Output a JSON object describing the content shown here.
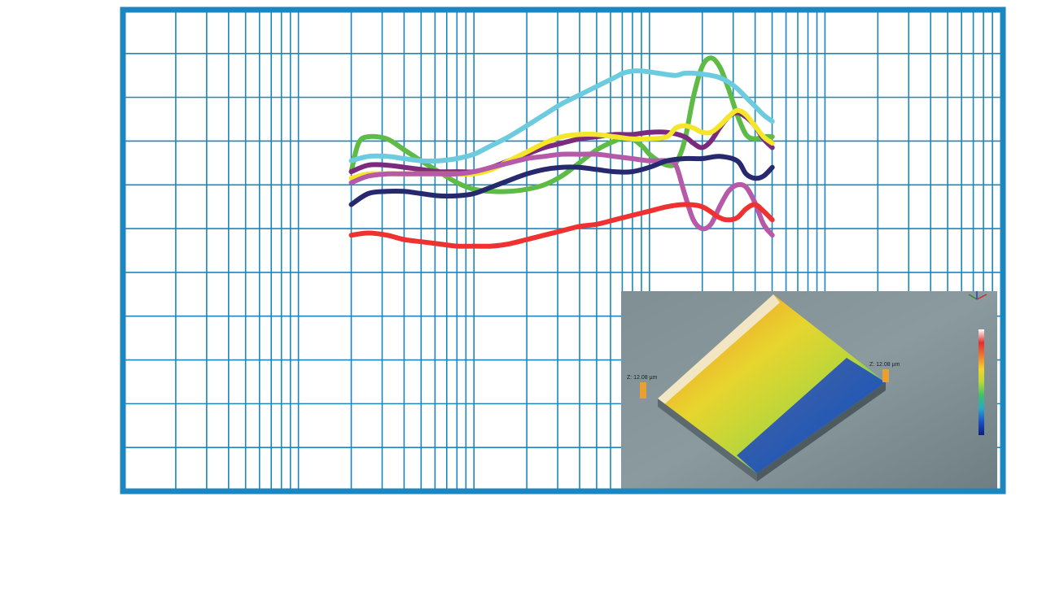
{
  "chart_data": {
    "type": "line",
    "xscale": "log",
    "xlim": [
      1,
      100000
    ],
    "ylim": [
      0,
      11
    ],
    "grid": true,
    "frame_color": "#1b86bf",
    "grid_color": "#1b86bf",
    "series": [
      {
        "color": "#5dbb46",
        "x": [
          20,
          22,
          25,
          32,
          40,
          50,
          63,
          80,
          100,
          126,
          158,
          200,
          251,
          316,
          398,
          501,
          631,
          750,
          900,
          1000,
          1122,
          1259,
          1413,
          1585,
          1778,
          1995,
          2239,
          2512,
          2818,
          3162,
          3548,
          3981,
          4467,
          5012
        ],
        "y": [
          7.3,
          7.95,
          8.1,
          8.05,
          7.8,
          7.55,
          7.3,
          7.05,
          6.9,
          6.85,
          6.85,
          6.9,
          7.0,
          7.2,
          7.5,
          7.8,
          8.0,
          8.1,
          7.9,
          7.7,
          7.55,
          7.45,
          7.5,
          8.0,
          9.0,
          9.7,
          9.9,
          9.7,
          9.2,
          8.6,
          8.15,
          8.05,
          8.1,
          8.1
        ]
      },
      {
        "color": "#6ccbdf",
        "x": [
          20,
          25,
          32,
          40,
          50,
          63,
          80,
          100,
          126,
          158,
          200,
          251,
          316,
          398,
          501,
          631,
          708,
          800,
          900,
          1000,
          1122,
          1259,
          1413,
          1585,
          1778,
          1995,
          2239,
          2512,
          2818,
          3162,
          3548,
          3981,
          4467,
          5012
        ],
        "y": [
          7.55,
          7.65,
          7.65,
          7.6,
          7.55,
          7.55,
          7.6,
          7.7,
          7.9,
          8.1,
          8.35,
          8.6,
          8.85,
          9.05,
          9.25,
          9.45,
          9.55,
          9.6,
          9.6,
          9.58,
          9.55,
          9.52,
          9.5,
          9.55,
          9.55,
          9.53,
          9.5,
          9.45,
          9.35,
          9.2,
          9.0,
          8.8,
          8.6,
          8.45
        ]
      },
      {
        "color": "#7b2a7e",
        "x": [
          20,
          25,
          32,
          40,
          50,
          63,
          80,
          100,
          126,
          158,
          200,
          251,
          316,
          398,
          501,
          631,
          794,
          1000,
          1259,
          1585,
          1778,
          1995,
          2239,
          2512,
          2818,
          3162,
          3548,
          3981,
          4467,
          5012
        ],
        "y": [
          7.3,
          7.45,
          7.45,
          7.4,
          7.35,
          7.3,
          7.3,
          7.3,
          7.4,
          7.55,
          7.7,
          7.85,
          7.95,
          8.05,
          8.1,
          8.15,
          8.15,
          8.2,
          8.2,
          8.1,
          7.95,
          7.85,
          8.0,
          8.3,
          8.55,
          8.65,
          8.55,
          8.35,
          8.05,
          7.85
        ]
      },
      {
        "color": "#f5e629",
        "x": [
          20,
          25,
          32,
          40,
          50,
          63,
          80,
          100,
          126,
          158,
          200,
          251,
          316,
          398,
          501,
          631,
          794,
          1000,
          1259,
          1413,
          1585,
          1778,
          1995,
          2239,
          2512,
          2818,
          3162,
          3548,
          3981,
          4467,
          5012
        ],
        "y": [
          7.15,
          7.25,
          7.25,
          7.25,
          7.25,
          7.25,
          7.25,
          7.25,
          7.35,
          7.55,
          7.75,
          7.95,
          8.1,
          8.15,
          8.15,
          8.1,
          8.05,
          8.05,
          8.1,
          8.3,
          8.35,
          8.3,
          8.2,
          8.2,
          8.35,
          8.55,
          8.7,
          8.6,
          8.35,
          8.1,
          7.95
        ]
      },
      {
        "color": "#b55aa8",
        "x": [
          20,
          25,
          32,
          40,
          50,
          63,
          80,
          100,
          126,
          158,
          200,
          251,
          316,
          398,
          501,
          631,
          794,
          1000,
          1259,
          1413,
          1585,
          1778,
          1995,
          2239,
          2512,
          2818,
          3162,
          3548,
          3981,
          4467,
          5012
        ],
        "y": [
          7.05,
          7.2,
          7.25,
          7.25,
          7.25,
          7.25,
          7.25,
          7.3,
          7.4,
          7.5,
          7.6,
          7.65,
          7.7,
          7.7,
          7.7,
          7.65,
          7.6,
          7.55,
          7.55,
          7.45,
          6.8,
          6.2,
          6.0,
          6.1,
          6.5,
          6.85,
          7.0,
          6.95,
          6.6,
          6.1,
          5.85
        ]
      },
      {
        "color": "#26296e",
        "x": [
          20,
          25,
          32,
          40,
          50,
          63,
          80,
          100,
          126,
          158,
          200,
          251,
          316,
          398,
          501,
          631,
          794,
          1000,
          1259,
          1585,
          1995,
          2512,
          3162,
          3548,
          3981,
          4467,
          5012
        ],
        "y": [
          6.55,
          6.8,
          6.85,
          6.85,
          6.8,
          6.75,
          6.75,
          6.8,
          6.95,
          7.1,
          7.25,
          7.35,
          7.4,
          7.4,
          7.35,
          7.3,
          7.3,
          7.4,
          7.55,
          7.6,
          7.6,
          7.65,
          7.55,
          7.25,
          7.15,
          7.2,
          7.4
        ]
      },
      {
        "color": "#ee3131",
        "x": [
          20,
          25,
          32,
          40,
          50,
          63,
          80,
          100,
          126,
          158,
          200,
          251,
          316,
          398,
          501,
          631,
          794,
          1000,
          1259,
          1585,
          1995,
          2512,
          2818,
          3162,
          3548,
          3981,
          4467,
          5012
        ],
        "y": [
          5.85,
          5.9,
          5.85,
          5.75,
          5.7,
          5.65,
          5.6,
          5.6,
          5.6,
          5.65,
          5.75,
          5.85,
          5.95,
          6.05,
          6.1,
          6.2,
          6.3,
          6.4,
          6.5,
          6.55,
          6.5,
          6.25,
          6.2,
          6.25,
          6.45,
          6.55,
          6.4,
          6.2
        ]
      }
    ]
  },
  "inset": {
    "axis_label_left": "Z: 12.08 µm",
    "axis_label_right": "Z: 12.08 µm",
    "colorbar_colors": [
      "#ffffff",
      "#e03030",
      "#f07a30",
      "#f5d22a",
      "#b8d83a",
      "#3fc06a",
      "#2aa7c8",
      "#1b4fc7",
      "#0a1f7a"
    ]
  }
}
